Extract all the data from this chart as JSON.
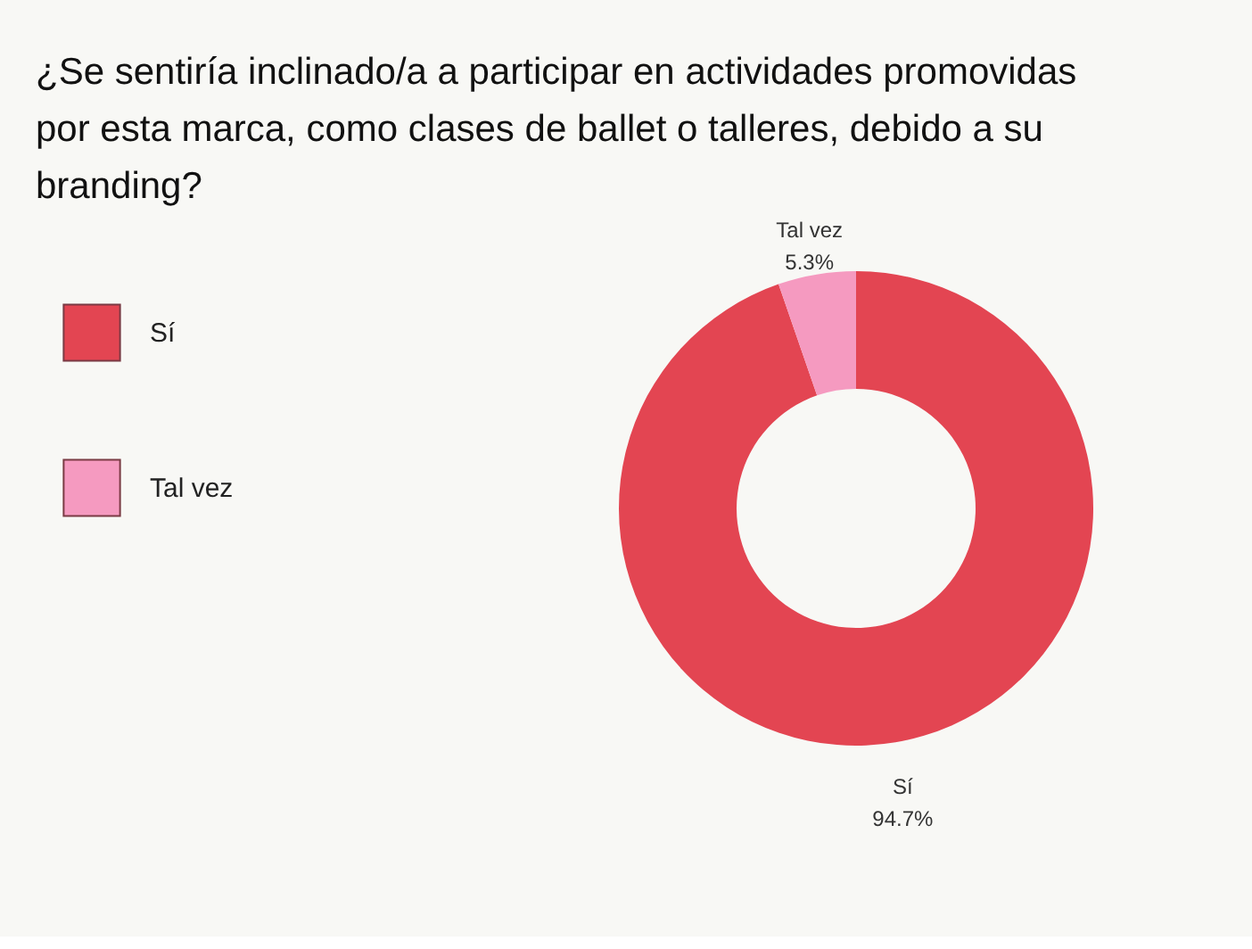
{
  "chart_data": {
    "type": "donut",
    "title": "¿Se sentiría inclinado/a a participar en actividades promovidas por esta marca, como clases de ballet o talleres, debido a su branding?",
    "categories": [
      "Sí",
      "Tal vez"
    ],
    "values": [
      94.7,
      5.3
    ],
    "colors": [
      "#e34552",
      "#f59ac0"
    ],
    "value_labels": [
      "94.7%",
      "5.3%"
    ],
    "legend": "left"
  }
}
